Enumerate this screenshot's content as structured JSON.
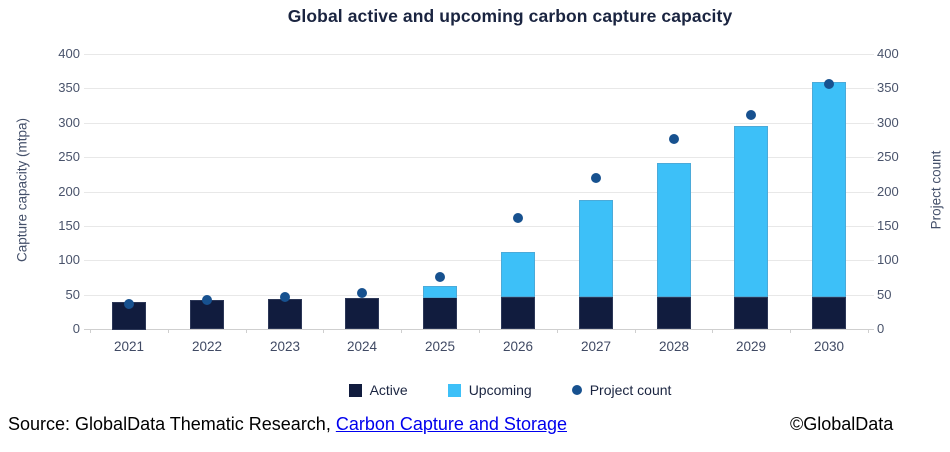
{
  "title": "Global active and upcoming carbon capture capacity",
  "chart_data": {
    "type": "bar",
    "subtype": "stacked-bars-with-scatter-overlay",
    "title": "Global active and upcoming carbon capture capacity",
    "categories": [
      "2021",
      "2022",
      "2023",
      "2024",
      "2025",
      "2026",
      "2027",
      "2028",
      "2029",
      "2030"
    ],
    "series": [
      {
        "name": "Active",
        "chart": "bar",
        "stacked": true,
        "color": "#111C3E",
        "values": [
          40,
          42,
          43,
          45,
          46,
          47,
          47,
          47,
          47,
          47
        ]
      },
      {
        "name": "Upcoming",
        "chart": "bar",
        "stacked": true,
        "color": "#3DC0F8",
        "values": [
          0,
          0,
          0,
          0,
          17,
          65,
          141,
          195,
          249,
          312
        ]
      },
      {
        "name": "Project count",
        "chart": "scatter",
        "color": "#17518F",
        "values": [
          37,
          42,
          46,
          52,
          76,
          161,
          219,
          276,
          311,
          357
        ]
      }
    ],
    "stacked_totals": [
      40,
      42,
      43,
      45,
      63,
      112,
      188,
      242,
      296,
      359
    ],
    "left_axis": {
      "label": "Capture capacity (mtpa)",
      "min": 0,
      "max": 400,
      "step": 50,
      "ticks": [
        0,
        50,
        100,
        150,
        200,
        250,
        300,
        350,
        400
      ]
    },
    "right_axis": {
      "label": "Project count",
      "min": 0,
      "max": 400,
      "step": 50,
      "ticks": [
        0,
        50,
        100,
        150,
        200,
        250,
        300,
        350,
        400
      ]
    },
    "grid": true,
    "legend_position": "bottom"
  },
  "legend": {
    "items": [
      {
        "label": "Active",
        "swatch": "square",
        "color": "#111C3E"
      },
      {
        "label": "Upcoming",
        "swatch": "square",
        "color": "#3DC0F8"
      },
      {
        "label": "Project count",
        "swatch": "dot",
        "color": "#17518F"
      }
    ]
  },
  "footer": {
    "source_prefix": "Source: GlobalData Thematic Research, ",
    "source_link": "Carbon Capture and Storage",
    "copyright": "©GlobalData"
  },
  "colors": {
    "active_bar": "#111C3E",
    "upcoming_bar": "#3DC0F8",
    "project_dot": "#17518F",
    "title_text": "#1A2440",
    "axis_text": "#44506A",
    "gridline": "#E8E8E8",
    "axis_line": "#CFCFCF",
    "link": "#0000EE"
  }
}
